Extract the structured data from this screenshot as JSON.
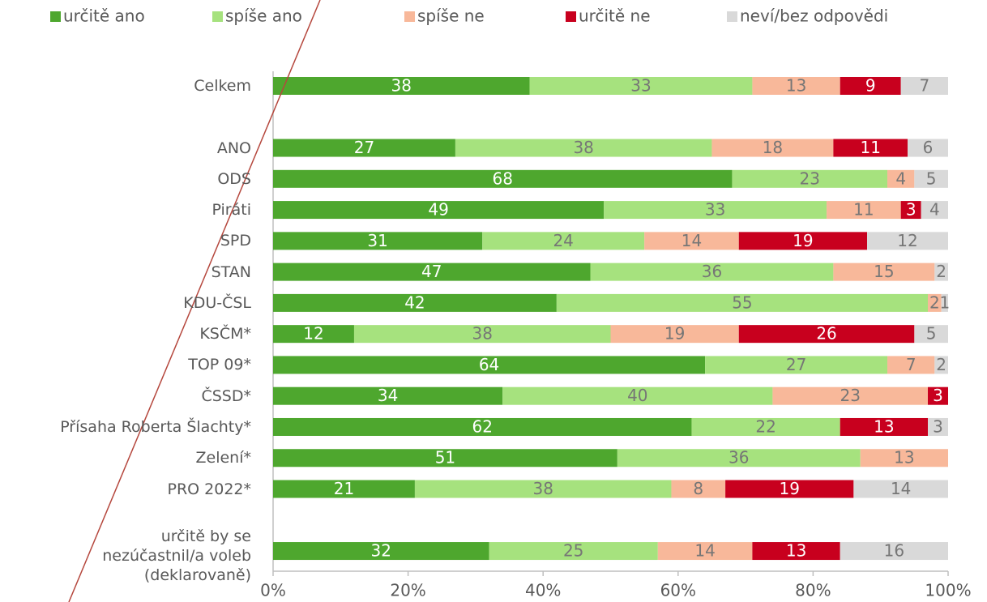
{
  "chart_data": {
    "type": "stacked_bar_horizontal",
    "categories": [
      "Celkem",
      null,
      "ANO",
      "ODS",
      "Piráti",
      "SPD",
      "STAN",
      "KDU-ČSL",
      "KSČM*",
      "TOP 09*",
      "ČSSD*",
      "Přísaha Roberta Šlachty*",
      "Zelení*",
      "PRO 2022*",
      null,
      "určitě by se\nnezúčastnil/a voleb\n(deklarovaně)"
    ],
    "series": [
      {
        "name": "určitě ano",
        "color": "#4ea72e",
        "label_color": "#ffffff",
        "values": [
          38,
          null,
          27,
          68,
          49,
          31,
          47,
          42,
          12,
          64,
          34,
          62,
          51,
          21,
          null,
          32
        ]
      },
      {
        "name": "spíše ano",
        "color": "#a6e27e",
        "label_color": "#767676",
        "values": [
          33,
          null,
          38,
          23,
          33,
          24,
          36,
          55,
          38,
          27,
          40,
          22,
          36,
          38,
          null,
          25
        ]
      },
      {
        "name": "spíše ne",
        "color": "#f8b89a",
        "label_color": "#767676",
        "values": [
          13,
          null,
          18,
          4,
          11,
          14,
          15,
          2,
          19,
          7,
          23,
          null,
          13,
          8,
          null,
          14
        ]
      },
      {
        "name": "určitě ne",
        "color": "#c8001e",
        "label_color": "#ffffff",
        "values": [
          9,
          null,
          11,
          null,
          3,
          19,
          null,
          null,
          26,
          null,
          3,
          13,
          null,
          19,
          null,
          13
        ]
      },
      {
        "name": "neví/bez odpovědi",
        "color": "#d9d9d9",
        "label_color": "#767676",
        "values": [
          7,
          null,
          6,
          5,
          4,
          12,
          2,
          1,
          5,
          2,
          null,
          3,
          null,
          14,
          null,
          16
        ]
      }
    ],
    "xlim": [
      0,
      100
    ],
    "xticks": [
      {
        "value": 0,
        "label": "0%"
      },
      {
        "value": 20,
        "label": "20%"
      },
      {
        "value": 40,
        "label": "40%"
      },
      {
        "value": 60,
        "label": "60%"
      },
      {
        "value": 80,
        "label": "80%"
      },
      {
        "value": 100,
        "label": "100%"
      }
    ],
    "legend": "top"
  }
}
